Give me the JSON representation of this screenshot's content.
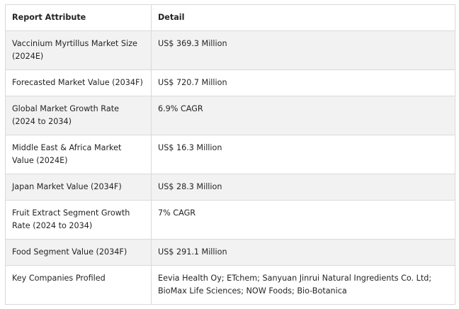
{
  "table": {
    "headers": [
      "Report Attribute",
      "Detail"
    ],
    "rows": [
      [
        "Vaccinium Myrtillus Market Size (2024E)",
        "US$ 369.3 Million"
      ],
      [
        "Forecasted Market Value (2034F)",
        "US$ 720.7 Million"
      ],
      [
        "Global Market Growth Rate (2024 to 2034)",
        "6.9% CAGR"
      ],
      [
        "Middle East & Africa Market Value (2024E)",
        "US$ 16.3 Million"
      ],
      [
        "Japan Market Value (2034F)",
        "US$ 28.3 Million"
      ],
      [
        "Fruit Extract Segment Growth Rate (2024 to 2034)",
        "7% CAGR"
      ],
      [
        "Food Segment Value (2034F)",
        "US$ 291.1 Million"
      ],
      [
        "Key Companies Profiled",
        "Eevia Health Oy; ETchem; Sanyuan Jinrui Natural Ingredients Co. Ltd; BioMax Life Sciences; NOW Foods; Bio-Botanica"
      ]
    ]
  }
}
